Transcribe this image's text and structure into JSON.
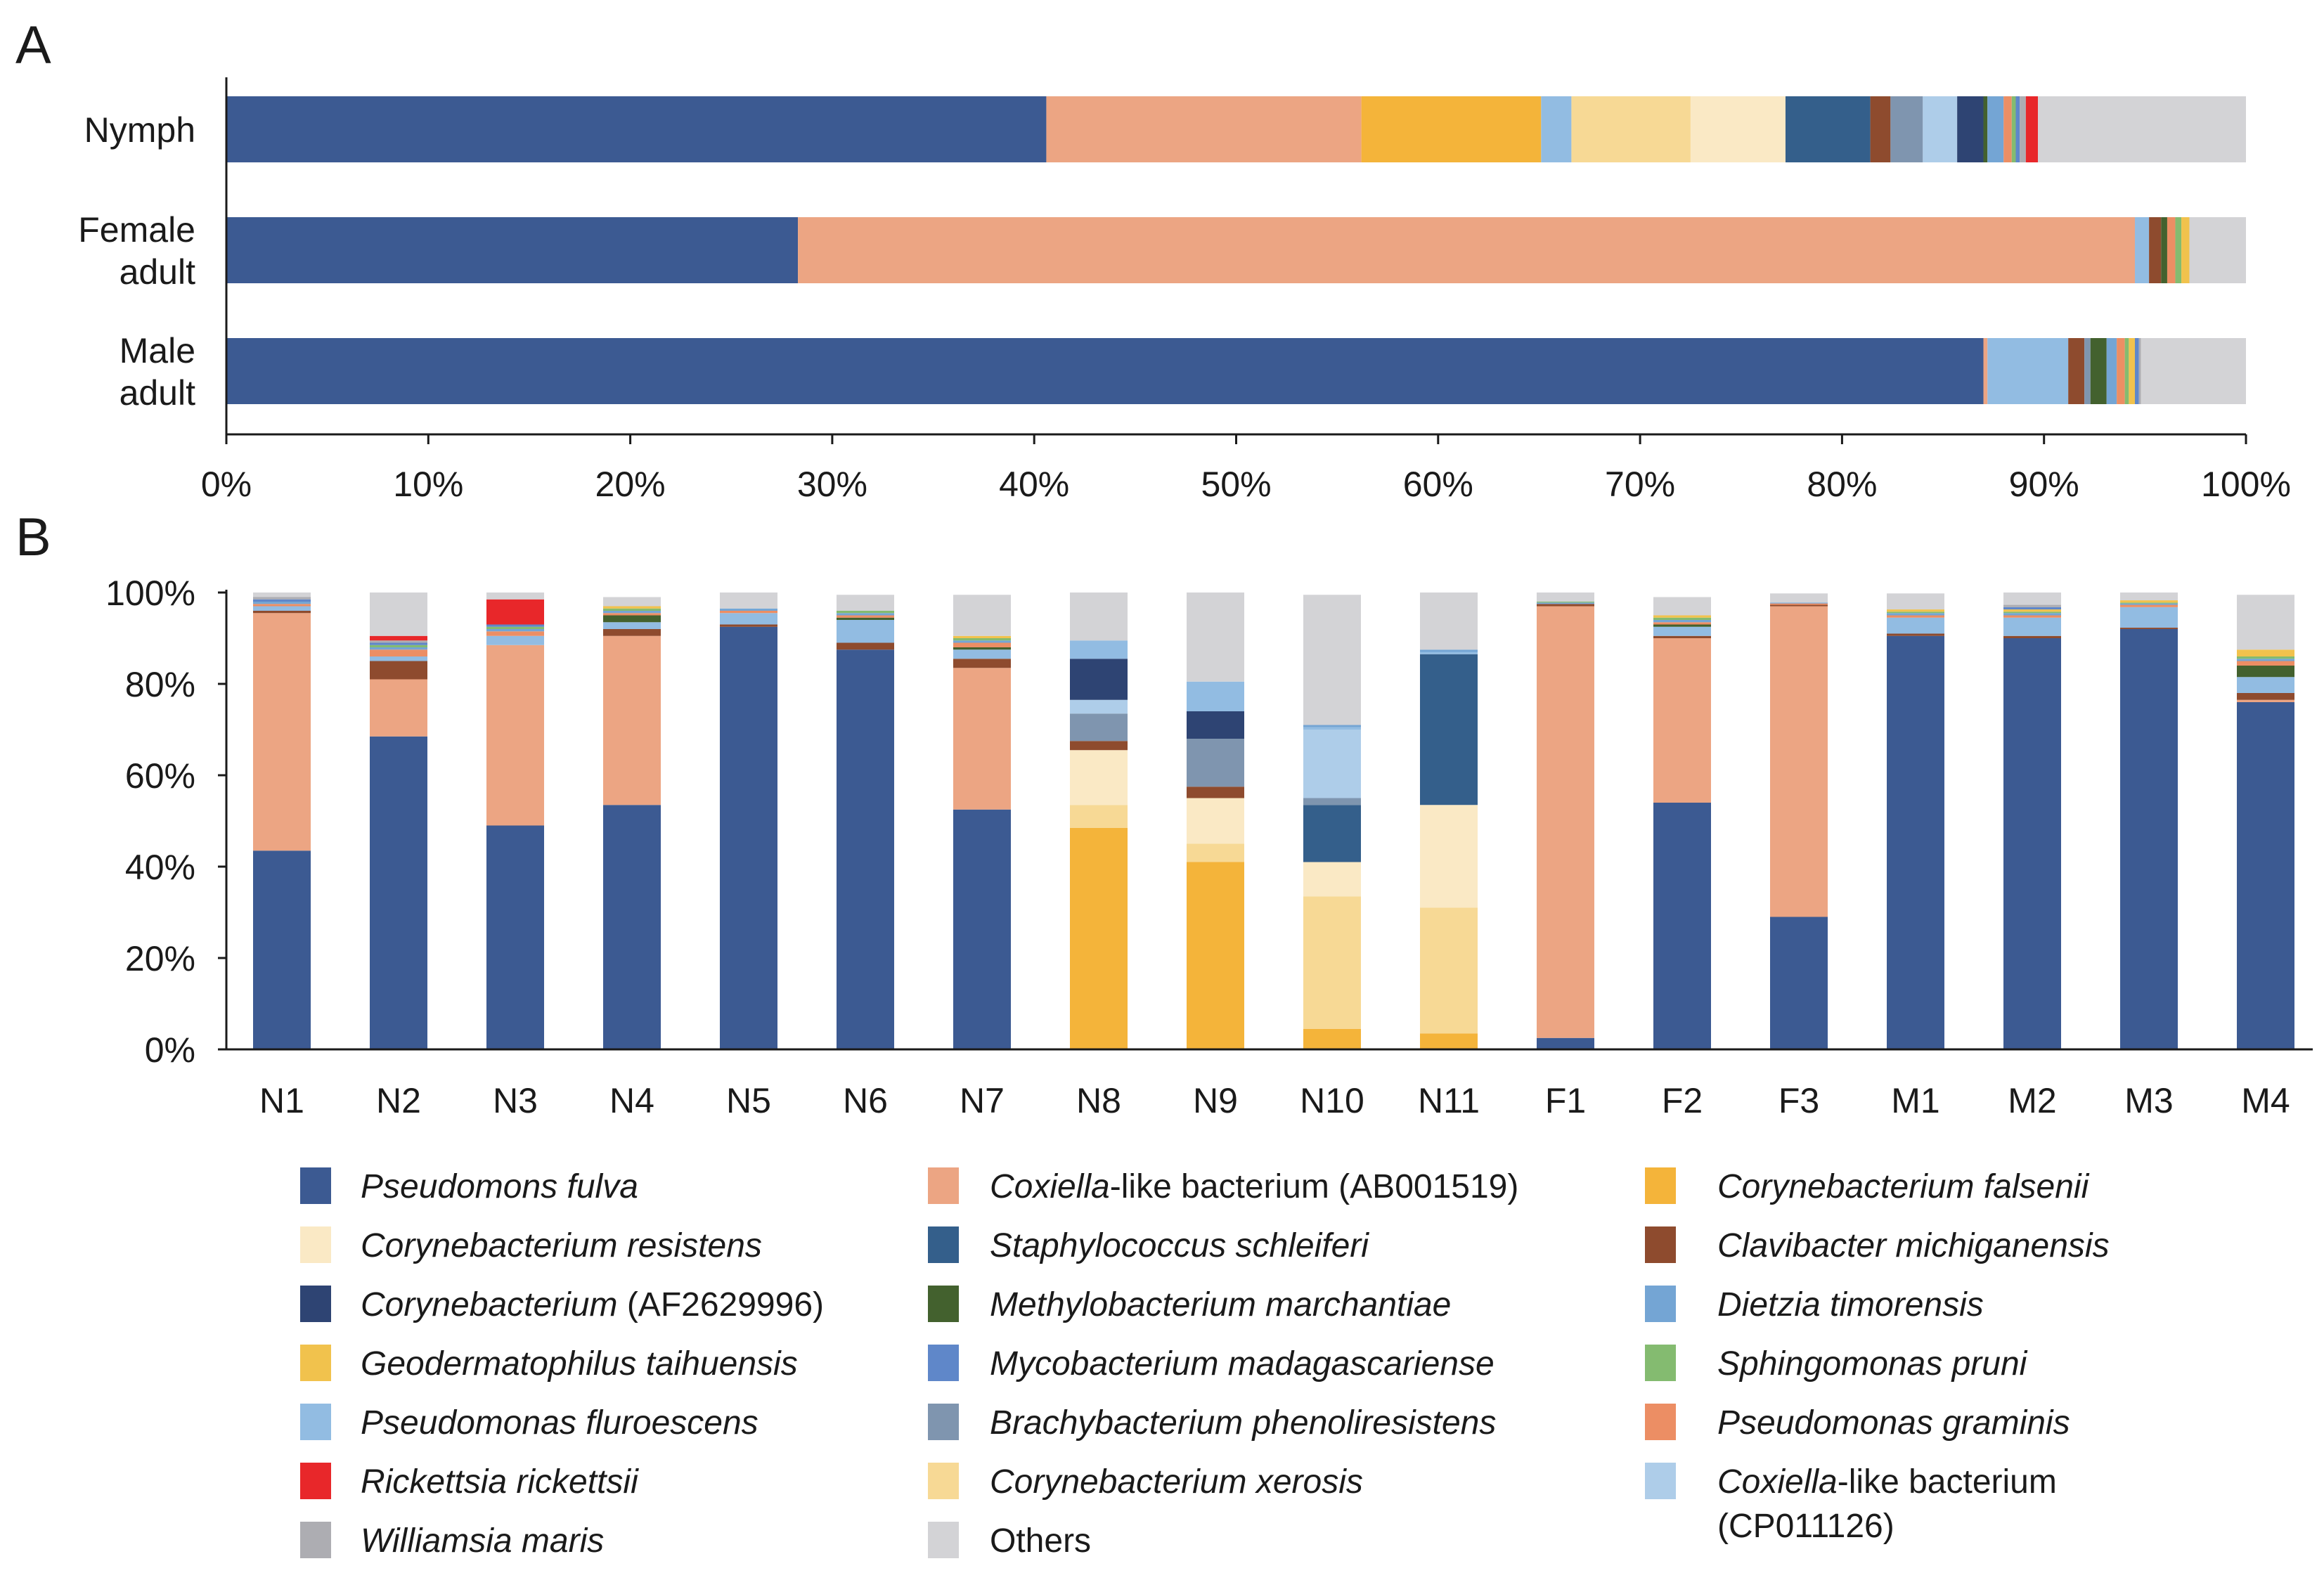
{
  "chart_data": [
    {
      "type": "bar",
      "orientation": "horizontal",
      "stacked": true,
      "panel_label": "A",
      "categories": [
        "Nymph",
        "Female adult",
        "Male adult"
      ],
      "category_lines": [
        [
          "Nymph"
        ],
        [
          "Female",
          "adult"
        ],
        [
          "Male",
          "adult"
        ]
      ],
      "xticks": [
        "0%",
        "10%",
        "20%",
        "30%",
        "40%",
        "50%",
        "60%",
        "70%",
        "80%",
        "90%",
        "100%"
      ],
      "xlim": [
        0,
        100
      ],
      "series": [
        {
          "name": "Pseudomons fulva",
          "values": [
            40.6,
            28.3,
            87.0
          ]
        },
        {
          "name": "Coxiella-like bacterium (AB001519)",
          "values": [
            15.6,
            66.2,
            0.2
          ]
        },
        {
          "name": "Corynebacterium falsenii",
          "values": [
            8.9,
            0,
            0
          ]
        },
        {
          "name": "Pseudomonas fluroescens",
          "values": [
            1.5,
            0.7,
            4.0
          ]
        },
        {
          "name": "Corynebacterium xerosis",
          "values": [
            5.9,
            0,
            0
          ]
        },
        {
          "name": "Corynebacterium resistens",
          "values": [
            4.7,
            0,
            0
          ]
        },
        {
          "name": "Staphylococcus schleiferi",
          "values": [
            4.2,
            0,
            0
          ]
        },
        {
          "name": "Clavibacter michiganensis",
          "values": [
            1.0,
            0.6,
            0.8
          ]
        },
        {
          "name": "Brachybacterium phenoliresistens",
          "values": [
            1.6,
            0,
            0.3
          ]
        },
        {
          "name": "Coxiella-like bacterium (CP011126)",
          "values": [
            1.7,
            0,
            0
          ]
        },
        {
          "name": "Corynebacterium (AF2629996)",
          "values": [
            1.3,
            0,
            0
          ]
        },
        {
          "name": "Methylobacterium marchantiae",
          "values": [
            0.2,
            0.3,
            0.8
          ]
        },
        {
          "name": "Dietzia timorensis",
          "values": [
            0.8,
            0,
            0.5
          ]
        },
        {
          "name": "Pseudomonas graminis",
          "values": [
            0.4,
            0.4,
            0.4
          ]
        },
        {
          "name": "Sphingomonas pruni",
          "values": [
            0.2,
            0.3,
            0.2
          ]
        },
        {
          "name": "Geodermatophilus taihuensis",
          "values": [
            0,
            0.4,
            0.3
          ]
        },
        {
          "name": "Mycobacterium madagascariense",
          "values": [
            0.2,
            0,
            0.2
          ]
        },
        {
          "name": "Williamsia maris",
          "values": [
            0.3,
            0,
            0.1
          ]
        },
        {
          "name": "Rickettsia rickettsii",
          "values": [
            0.6,
            0,
            0
          ]
        },
        {
          "name": "Others",
          "values": [
            10.3,
            2.8,
            5.2
          ]
        }
      ]
    },
    {
      "type": "bar",
      "orientation": "vertical",
      "stacked": true,
      "panel_label": "B",
      "categories": [
        "N1",
        "N2",
        "N3",
        "N4",
        "N5",
        "N6",
        "N7",
        "N8",
        "N9",
        "N10",
        "N11",
        "F1",
        "F2",
        "F3",
        "M1",
        "M2",
        "M3",
        "M4"
      ],
      "yticks": [
        "0%",
        "20%",
        "40%",
        "60%",
        "80%",
        "100%"
      ],
      "ylim": [
        0,
        100
      ],
      "series": [
        {
          "name": "Corynebacterium falsenii",
          "values": [
            0,
            0,
            0,
            0,
            0,
            0,
            0,
            48.5,
            41.0,
            4.5,
            3.5,
            0,
            0,
            0,
            0,
            0,
            0,
            0
          ]
        },
        {
          "name": "Pseudomons fulva",
          "values": [
            43.5,
            68.5,
            49.0,
            53.5,
            92.5,
            87.5,
            52.5,
            0,
            0,
            0,
            0,
            2.5,
            54.0,
            29.0,
            90.5,
            90.0,
            92.0,
            76.0
          ]
        },
        {
          "name": "Corynebacterium xerosis",
          "values": [
            0,
            0,
            0,
            0,
            0,
            0,
            0,
            5.0,
            4.0,
            29.0,
            27.5,
            0,
            0,
            0,
            0,
            0,
            0,
            0
          ]
        },
        {
          "name": "Corynebacterium resistens",
          "values": [
            0,
            0,
            0,
            0,
            0,
            0,
            0,
            12.0,
            10.0,
            7.5,
            22.5,
            0,
            0,
            0,
            0,
            0,
            0,
            0
          ]
        },
        {
          "name": "Staphylococcus schleiferi",
          "values": [
            0,
            0,
            0,
            0,
            0,
            0,
            0,
            0,
            0,
            12.5,
            33.0,
            0,
            0,
            0,
            0,
            0,
            0,
            0
          ]
        },
        {
          "name": "Coxiella-like bacterium (AB001519)",
          "values": [
            52.0,
            12.5,
            39.5,
            37.0,
            0,
            0,
            31.0,
            0,
            0,
            0,
            0,
            94.5,
            36.0,
            68.0,
            0,
            0,
            0,
            0.5
          ]
        },
        {
          "name": "Clavibacter michiganensis",
          "values": [
            0.5,
            4.0,
            0,
            1.5,
            0.5,
            1.5,
            2.0,
            2.0,
            2.5,
            0,
            0,
            0.5,
            0.5,
            0.3,
            0.5,
            0.5,
            0.3,
            1.5
          ]
        },
        {
          "name": "Brachybacterium phenoliresistens",
          "values": [
            0,
            0,
            0,
            0,
            0,
            0,
            0,
            6.0,
            10.5,
            1.5,
            0,
            0,
            0,
            0,
            0,
            0,
            0,
            0
          ]
        },
        {
          "name": "Coxiella-like bacterium (CP011126)",
          "values": [
            0,
            0,
            0,
            0,
            0,
            0,
            0,
            3.0,
            0,
            15.0,
            0,
            0,
            0,
            0,
            0,
            0,
            0,
            0
          ]
        },
        {
          "name": "Corynebacterium (AF2629996)",
          "values": [
            0,
            0,
            0,
            0,
            0,
            0,
            0,
            9.0,
            6.0,
            0,
            0,
            0,
            0,
            0,
            0,
            0,
            0,
            0
          ]
        },
        {
          "name": "Pseudomonas fluroescens",
          "values": [
            1.0,
            1.0,
            2.0,
            1.5,
            2.5,
            5.0,
            2.0,
            4.0,
            6.5,
            0.5,
            0.5,
            0,
            2.0,
            0,
            3.5,
            4.0,
            4.5,
            3.5
          ]
        },
        {
          "name": "Methylobacterium marchantiae",
          "values": [
            0,
            0,
            0,
            1.5,
            0,
            0.5,
            0.5,
            0,
            0,
            0,
            0,
            0,
            0.5,
            0,
            0,
            0,
            0,
            2.5
          ]
        },
        {
          "name": "Pseudomonas graminis",
          "values": [
            0.5,
            1.5,
            1.0,
            0.5,
            0.5,
            0.5,
            1.0,
            0,
            0,
            0,
            0,
            0,
            0.5,
            0.3,
            0.5,
            0.5,
            0.5,
            1.0
          ]
        },
        {
          "name": "Dietzia timorensis",
          "values": [
            0.5,
            0.5,
            0.5,
            0.5,
            0.5,
            0.5,
            0.5,
            0,
            0,
            0.5,
            0.5,
            0.3,
            0.5,
            0.2,
            0.5,
            0.5,
            0.3,
            0.5
          ]
        },
        {
          "name": "Sphingomonas pruni",
          "values": [
            0,
            0.5,
            0.5,
            0.5,
            0,
            0.5,
            0.5,
            0,
            0,
            0,
            0,
            0.2,
            0.5,
            0,
            0.3,
            0.3,
            0.2,
            0.5
          ]
        },
        {
          "name": "Geodermatophilus taihuensis",
          "values": [
            0,
            0,
            0,
            0.5,
            0,
            0,
            0.5,
            0,
            0,
            0,
            0,
            0,
            0.5,
            0,
            0.5,
            0.5,
            0.5,
            1.5
          ]
        },
        {
          "name": "Mycobacterium madagascariense",
          "values": [
            0.5,
            0.5,
            0.5,
            0,
            0,
            0,
            0,
            0,
            0,
            0,
            0,
            0,
            0,
            0,
            0,
            0.5,
            0,
            0
          ]
        },
        {
          "name": "Williamsia maris",
          "values": [
            0.5,
            0.5,
            0,
            0,
            0,
            0,
            0,
            0,
            0,
            0,
            0,
            0,
            0,
            0,
            0,
            0.5,
            0,
            0
          ]
        },
        {
          "name": "Rickettsia rickettsii",
          "values": [
            0,
            1.0,
            5.5,
            0,
            0,
            0,
            0,
            0,
            0,
            0,
            0,
            0,
            0,
            0,
            0,
            0,
            0,
            0
          ]
        },
        {
          "name": "Others",
          "values": [
            1.0,
            10.0,
            1.5,
            2.0,
            3.5,
            3.5,
            9.0,
            10.5,
            19.5,
            28.5,
            12.5,
            2.0,
            4.0,
            2.0,
            3.5,
            3.5,
            1.7,
            12.0
          ]
        }
      ]
    }
  ],
  "colors": {
    "Pseudomons fulva": "#3c5a92",
    "Coxiella-like bacterium (AB001519)": "#eca583",
    "Corynebacterium falsenii": "#f4b43a",
    "Corynebacterium resistens": "#fae9c5",
    "Staphylococcus schleiferi": "#345f8b",
    "Clavibacter michiganensis": "#8e4b2e",
    "Corynebacterium (AF2629996)": "#2e4473",
    "Methylobacterium marchantiae": "#43612e",
    "Dietzia timorensis": "#74a5d4",
    "Geodermatophilus taihuensis": "#f1c24d",
    "Mycobacterium madagascariense": "#5f87c9",
    "Sphingomonas pruni": "#84bb70",
    "Pseudomonas fluroescens": "#92bce2",
    "Brachybacterium phenoliresistens": "#7f95af",
    "Pseudomonas graminis": "#ec8e64",
    "Rickettsia rickettsii": "#e8272a",
    "Corynebacterium xerosis": "#f7d995",
    "Coxiella-like bacterium (CP011126)": "#aecde9",
    "Williamsia maris": "#adadb2",
    "Others": "#d3d3d6"
  },
  "legend": [
    {
      "parts": [
        {
          "t": "Pseudomons fulva",
          "i": true
        }
      ],
      "color_key": "Pseudomons fulva"
    },
    {
      "parts": [
        {
          "t": "Coxiella",
          "i": true
        },
        {
          "t": "-like bacterium (AB001519)",
          "i": false
        }
      ],
      "color_key": "Coxiella-like bacterium (AB001519)"
    },
    {
      "parts": [
        {
          "t": "Corynebacterium falsenii",
          "i": true
        }
      ],
      "color_key": "Corynebacterium falsenii"
    },
    {
      "parts": [
        {
          "t": "Corynebacterium resistens",
          "i": true
        }
      ],
      "color_key": "Corynebacterium resistens"
    },
    {
      "parts": [
        {
          "t": "Staphylococcus schleiferi",
          "i": true
        }
      ],
      "color_key": "Staphylococcus schleiferi"
    },
    {
      "parts": [
        {
          "t": "Clavibacter michiganensis",
          "i": true
        }
      ],
      "color_key": "Clavibacter michiganensis"
    },
    {
      "parts": [
        {
          "t": "Corynebacterium",
          "i": true
        },
        {
          "t": " (AF2629996)",
          "i": false
        }
      ],
      "color_key": "Corynebacterium (AF2629996)"
    },
    {
      "parts": [
        {
          "t": "Methylobacterium marchantiae",
          "i": true
        }
      ],
      "color_key": "Methylobacterium marchantiae"
    },
    {
      "parts": [
        {
          "t": "Dietzia timorensis",
          "i": true
        }
      ],
      "color_key": "Dietzia timorensis"
    },
    {
      "parts": [
        {
          "t": "Geodermatophilus taihuensis",
          "i": true
        }
      ],
      "color_key": "Geodermatophilus taihuensis"
    },
    {
      "parts": [
        {
          "t": "Mycobacterium madagascariense",
          "i": true
        }
      ],
      "color_key": "Mycobacterium madagascariense"
    },
    {
      "parts": [
        {
          "t": "Sphingomonas pruni",
          "i": true
        }
      ],
      "color_key": "Sphingomonas pruni"
    },
    {
      "parts": [
        {
          "t": "Pseudomonas fluroescens",
          "i": true
        }
      ],
      "color_key": "Pseudomonas fluroescens"
    },
    {
      "parts": [
        {
          "t": "Brachybacterium phenoliresistens",
          "i": true
        }
      ],
      "color_key": "Brachybacterium phenoliresistens"
    },
    {
      "parts": [
        {
          "t": "Pseudomonas graminis",
          "i": true
        }
      ],
      "color_key": "Pseudomonas graminis"
    },
    {
      "parts": [
        {
          "t": "Rickettsia rickettsii",
          "i": true
        }
      ],
      "color_key": "Rickettsia rickettsii"
    },
    {
      "parts": [
        {
          "t": "Corynebacterium xerosis",
          "i": true
        }
      ],
      "color_key": "Corynebacterium xerosis"
    },
    {
      "parts": [
        {
          "t": "Coxiella",
          "i": true
        },
        {
          "t": "-like bacterium",
          "i": false
        }
      ],
      "line2": "(CP011126)",
      "color_key": "Coxiella-like bacterium (CP011126)"
    },
    {
      "parts": [
        {
          "t": "Williamsia maris",
          "i": true
        }
      ],
      "color_key": "Williamsia maris"
    },
    {
      "parts": [
        {
          "t": "Others",
          "i": false
        }
      ],
      "color_key": "Others"
    }
  ]
}
